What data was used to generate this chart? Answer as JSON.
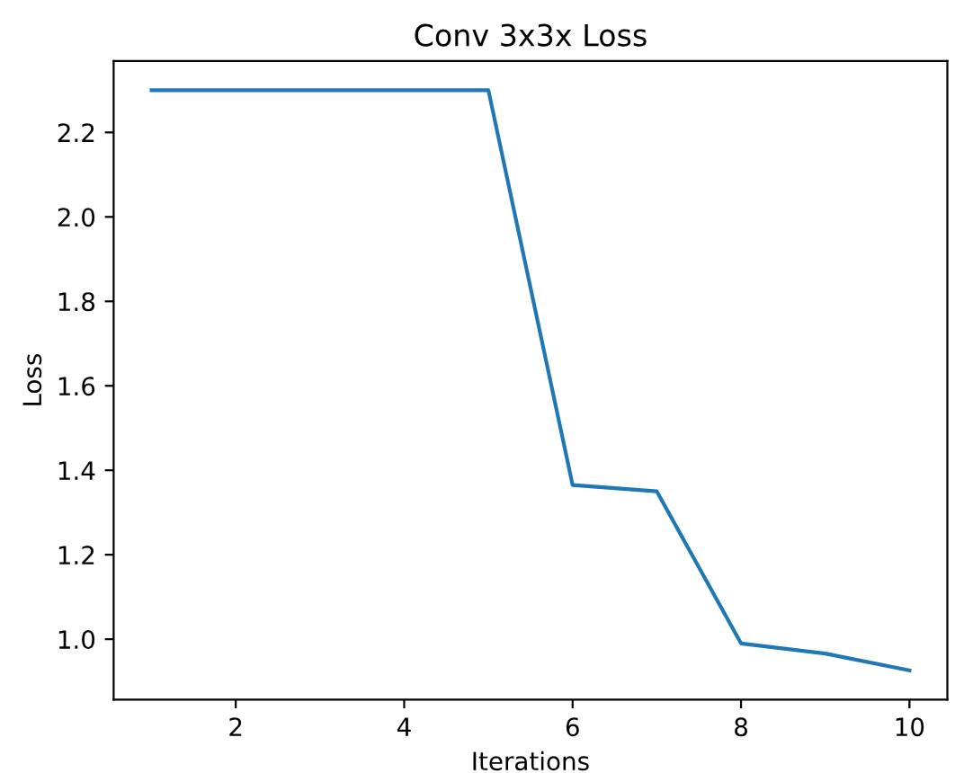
{
  "chart_data": {
    "type": "line",
    "title": "Conv 3x3x Loss",
    "xlabel": "Iterations",
    "ylabel": "Loss",
    "x": [
      1,
      2,
      3,
      4,
      5,
      6,
      7,
      8,
      9,
      10
    ],
    "series": [
      {
        "color": "#1f77b4",
        "values": [
          2.3,
          2.3,
          2.3,
          2.3,
          2.3,
          1.365,
          1.35,
          0.99,
          0.966,
          0.926
        ]
      }
    ],
    "xlim": [
      0.55,
      10.45
    ],
    "xticks": [
      2,
      4,
      6,
      8,
      10
    ],
    "ylim": [
      0.857,
      2.369
    ],
    "yticks": [
      {
        "value": 1.0,
        "label": "1.0"
      },
      1.2,
      1.4,
      1.6,
      1.8,
      {
        "value": 2.0,
        "label": "2.0"
      },
      2.2
    ],
    "grid": false
  }
}
